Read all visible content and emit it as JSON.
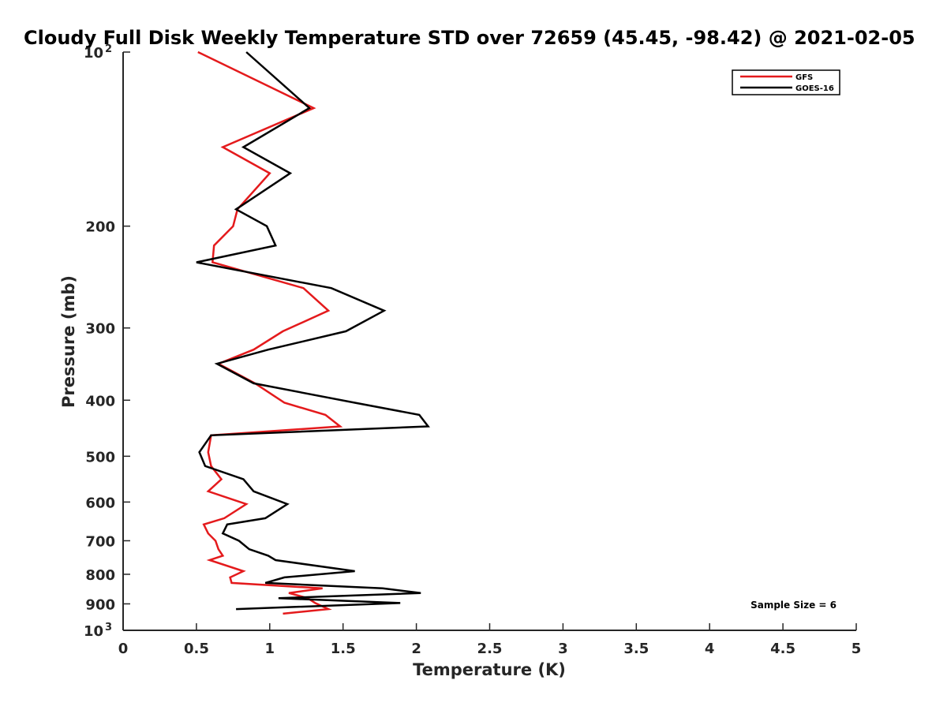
{
  "chart_data": {
    "type": "line",
    "title": "Cloudy Full Disk Weekly Temperature STD over 72659 (45.45, -98.42) @ 2021-02-05",
    "xlabel": "Temperature (K)",
    "ylabel": "Pressure (mb)",
    "xlim": [
      0,
      5
    ],
    "ylim": [
      100,
      1000
    ],
    "y_scale": "log",
    "y_reversed": true,
    "grid": false,
    "legend_position": "top-right",
    "x_ticks": [
      "0",
      "0.5",
      "1",
      "1.5",
      "2",
      "2.5",
      "3",
      "3.5",
      "4",
      "4.5",
      "5"
    ],
    "y_ticks": [
      {
        "value": 100,
        "label": "10",
        "sup": "2"
      },
      {
        "value": 200,
        "label": "200",
        "sup": ""
      },
      {
        "value": 300,
        "label": "300",
        "sup": ""
      },
      {
        "value": 400,
        "label": "400",
        "sup": ""
      },
      {
        "value": 500,
        "label": "500",
        "sup": ""
      },
      {
        "value": 600,
        "label": "600",
        "sup": ""
      },
      {
        "value": 700,
        "label": "700",
        "sup": ""
      },
      {
        "value": 800,
        "label": "800",
        "sup": ""
      },
      {
        "value": 900,
        "label": "900",
        "sup": ""
      },
      {
        "value": 1000,
        "label": "10",
        "sup": "3"
      }
    ],
    "series": [
      {
        "name": "GFS",
        "color": "#e41a1c",
        "points": [
          [
            0.51,
            100
          ],
          [
            1.3,
            125
          ],
          [
            0.68,
            146
          ],
          [
            1.0,
            162
          ],
          [
            0.78,
            187
          ],
          [
            0.75,
            200
          ],
          [
            0.62,
            216
          ],
          [
            0.61,
            231
          ],
          [
            1.23,
            256
          ],
          [
            1.4,
            280
          ],
          [
            1.09,
            304
          ],
          [
            0.89,
            327
          ],
          [
            0.65,
            346
          ],
          [
            0.9,
            374
          ],
          [
            1.1,
            404
          ],
          [
            1.38,
            424
          ],
          [
            1.48,
            444
          ],
          [
            0.6,
            460
          ],
          [
            0.58,
            492
          ],
          [
            0.6,
            520
          ],
          [
            0.67,
            548
          ],
          [
            0.58,
            575
          ],
          [
            0.84,
            605
          ],
          [
            0.69,
            640
          ],
          [
            0.55,
            656
          ],
          [
            0.58,
            680
          ],
          [
            0.63,
            700
          ],
          [
            0.65,
            724
          ],
          [
            0.68,
            743
          ],
          [
            0.59,
            756
          ],
          [
            0.82,
            790
          ],
          [
            0.73,
            810
          ],
          [
            0.74,
            828
          ],
          [
            1.36,
            846
          ],
          [
            1.13,
            862
          ],
          [
            1.26,
            880
          ],
          [
            1.31,
            897
          ],
          [
            1.4,
            919
          ],
          [
            1.09,
            936
          ]
        ]
      },
      {
        "name": "GOES-16",
        "color": "#000000",
        "points": [
          [
            0.84,
            100
          ],
          [
            1.27,
            125
          ],
          [
            0.82,
            146
          ],
          [
            1.14,
            162
          ],
          [
            0.77,
            187
          ],
          [
            0.98,
            200
          ],
          [
            1.04,
            216
          ],
          [
            0.5,
            231
          ],
          [
            1.42,
            256
          ],
          [
            1.78,
            280
          ],
          [
            1.52,
            304
          ],
          [
            0.99,
            327
          ],
          [
            0.64,
            346
          ],
          [
            0.89,
            374
          ],
          [
            1.58,
            404
          ],
          [
            2.02,
            424
          ],
          [
            2.08,
            444
          ],
          [
            0.6,
            460
          ],
          [
            0.52,
            492
          ],
          [
            0.56,
            520
          ],
          [
            0.82,
            548
          ],
          [
            0.89,
            575
          ],
          [
            1.12,
            605
          ],
          [
            0.97,
            640
          ],
          [
            0.71,
            656
          ],
          [
            0.68,
            680
          ],
          [
            0.79,
            700
          ],
          [
            0.86,
            724
          ],
          [
            0.99,
            743
          ],
          [
            1.04,
            756
          ],
          [
            1.58,
            790
          ],
          [
            1.1,
            810
          ],
          [
            0.97,
            828
          ],
          [
            1.77,
            846
          ],
          [
            2.03,
            862
          ],
          [
            1.06,
            880
          ],
          [
            1.89,
            897
          ],
          [
            0.77,
            919
          ]
        ]
      }
    ],
    "annotations": [
      "Sample Size = 6"
    ]
  }
}
